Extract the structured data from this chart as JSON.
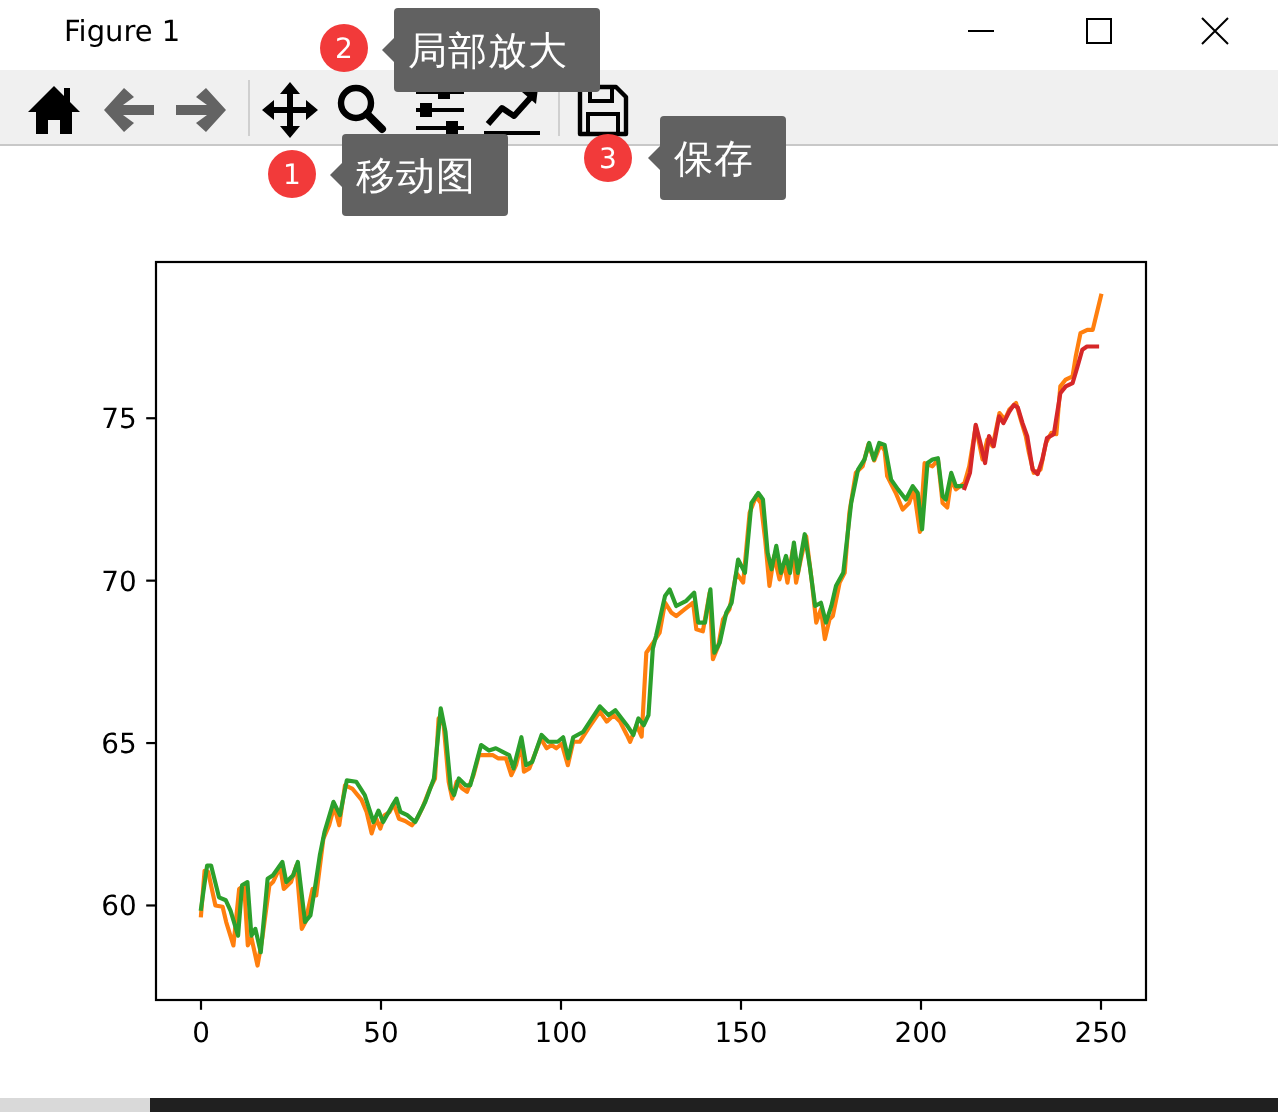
{
  "chart_data": {
    "type": "line",
    "annotations": [
      "Figure 1",
      "1",
      "移动图",
      "2",
      "局部放大",
      "3",
      "保存"
    ],
    "xlim": [
      -12.5,
      262.5
    ],
    "xticks": [
      0,
      50,
      100,
      150,
      200,
      250
    ],
    "ylim": [
      57.09,
      79.81
    ],
    "yticks": [
      60,
      65,
      70,
      75
    ],
    "series": [
      {
        "color": "#ff7f0e",
        "x": [
          0,
          1,
          2,
          4,
          6,
          7,
          9,
          10.6,
          12,
          13,
          14,
          15.7,
          17,
          19,
          20,
          22,
          23,
          25,
          26.5,
          28,
          29,
          31,
          32,
          34,
          35.6,
          37,
          38.4,
          40,
          42,
          44.6,
          46,
          47.4,
          48.7,
          49.8,
          51,
          52.4,
          53.5,
          55,
          56.7,
          58.6,
          60,
          61.4,
          63.6,
          65,
          66,
          67.4,
          68.8,
          69.8,
          71,
          72.6,
          73.9,
          75.7,
          77.2,
          81,
          82.5,
          84.7,
          86.2,
          87.5,
          89,
          89.7,
          91.2,
          93,
          94.4,
          96,
          97.4,
          98.7,
          100.2,
          101.9,
          103.4,
          105.2,
          107.6,
          110.8,
          112.7,
          114.6,
          116.4,
          118.3,
          119.2,
          121,
          122.4,
          123.7,
          125.6,
          127.4,
          128.9,
          130.7,
          132,
          134.4,
          136.7,
          137.6,
          139.4,
          141.3,
          142.2,
          143.7,
          145,
          146.8,
          148.7,
          150.6,
          152.4,
          154.2,
          155.5,
          156.7,
          157.9,
          159.2,
          160.7,
          162,
          162.9,
          164.4,
          165.3,
          166.6,
          168.1,
          169.6,
          170.9,
          172.2,
          173.3,
          174.6,
          175.5,
          177.4,
          178.8,
          180.1,
          181.9,
          183.8,
          185.4,
          187,
          188.8,
          189.9,
          190.6,
          193,
          194.9,
          196.7,
          198,
          199.7,
          201,
          203.2,
          204.7,
          206,
          207.3,
          208.4,
          209.7,
          212.1,
          213.4,
          215.2,
          217.1,
          218.4,
          219.9,
          221.8,
          223.3,
          224.5,
          226.4,
          227.7,
          229.1,
          230,
          231.3,
          233.2,
          234.7,
          236.2,
          237.6,
          238.7,
          240.2,
          242.1,
          243,
          244.3,
          246.2,
          247.7,
          248.6,
          250
        ],
        "values": [
          59.7,
          61.07,
          61.03,
          60.0,
          59.96,
          59.49,
          58.77,
          60.51,
          60.62,
          58.77,
          59.01,
          58.15,
          58.97,
          60.62,
          60.72,
          61.19,
          60.51,
          60.72,
          61.23,
          59.28,
          59.49,
          60.51,
          60.31,
          62.06,
          62.47,
          63.05,
          62.47,
          63.7,
          63.6,
          63.25,
          62.88,
          62.22,
          62.67,
          62.37,
          62.78,
          62.88,
          63.13,
          62.67,
          62.6,
          62.47,
          62.67,
          62.98,
          63.6,
          63.91,
          65.76,
          65.56,
          63.81,
          63.29,
          63.81,
          63.6,
          63.5,
          64.01,
          64.63,
          64.63,
          64.53,
          64.53,
          64.01,
          64.32,
          64.98,
          64.12,
          64.22,
          64.73,
          65.14,
          64.84,
          64.94,
          64.84,
          64.98,
          64.32,
          65.04,
          65.04,
          65.45,
          65.97,
          65.66,
          65.86,
          65.66,
          65.25,
          65.04,
          65.55,
          65.2,
          67.78,
          68.09,
          68.4,
          69.32,
          69.01,
          68.91,
          69.12,
          69.32,
          68.5,
          68.44,
          69.63,
          67.58,
          67.99,
          68.81,
          69.12,
          70.24,
          69.94,
          72.09,
          72.6,
          72.39,
          71.27,
          69.84,
          70.76,
          70.04,
          70.55,
          69.94,
          70.96,
          69.94,
          70.65,
          71.37,
          70.04,
          68.71,
          69.12,
          68.2,
          68.81,
          68.91,
          69.94,
          70.24,
          72.09,
          73.32,
          73.52,
          74.2,
          73.7,
          74.2,
          74.0,
          73.22,
          72.7,
          72.19,
          72.39,
          72.81,
          71.5,
          73.62,
          73.52,
          73.73,
          72.39,
          72.25,
          73.11,
          72.81,
          73.01,
          73.52,
          74.75,
          73.73,
          74.34,
          74.14,
          75.16,
          74.96,
          75.26,
          75.47,
          74.96,
          74.45,
          73.93,
          73.32,
          73.42,
          74.24,
          74.55,
          74.51,
          75.98,
          76.19,
          76.29,
          76.91,
          77.62,
          77.72,
          77.72,
          78.13,
          78.77
        ]
      },
      {
        "color": "#2ca02c",
        "x": [
          0,
          1.7,
          2.8,
          5,
          6.9,
          8.2,
          10.3,
          11.4,
          12.9,
          14,
          15.1,
          16.6,
          18.5,
          20,
          22.6,
          23.7,
          25.6,
          26.9,
          28.9,
          30.4,
          31.9,
          33,
          34.3,
          36.8,
          38.6,
          40.5,
          43.1,
          45.5,
          47.9,
          49.3,
          50.6,
          53,
          54.3,
          55.4,
          57.3,
          59.5,
          62.3,
          64.7,
          66.6,
          67.9,
          69.4,
          70.3,
          71.6,
          73.5,
          74.8,
          77.8,
          80,
          81.9,
          83.8,
          85.6,
          86.8,
          89,
          90.3,
          92,
          94.6,
          96.5,
          99.1,
          100.6,
          102,
          103.4,
          106.2,
          110.8,
          113.2,
          115.1,
          118.3,
          120.1,
          121.5,
          123,
          124.3,
          125.5,
          126.4,
          128.9,
          130.2,
          132,
          134.8,
          137,
          138.1,
          140,
          141.5,
          142.6,
          144.1,
          145.9,
          147.4,
          149.2,
          151.1,
          152.9,
          154.8,
          156.1,
          157.4,
          158.5,
          159.8,
          161.1,
          162.5,
          163.6,
          164.7,
          165.8,
          167.7,
          169.1,
          170.6,
          172.2,
          173.6,
          175.1,
          176.4,
          178.4,
          180.6,
          182.5,
          184.3,
          185.6,
          186.9,
          188.4,
          189.9,
          191.7,
          193.6,
          195.8,
          197.7,
          199.1,
          200.3,
          201.8,
          203.2,
          204.7,
          206,
          206.9,
          208.4,
          209.7,
          211.5
        ],
        "values": [
          59.9,
          61.23,
          61.23,
          60.25,
          60.16,
          59.84,
          59.07,
          60.62,
          60.72,
          59.07,
          59.28,
          58.56,
          60.82,
          60.93,
          61.34,
          60.72,
          60.93,
          61.34,
          59.49,
          59.69,
          60.72,
          61.54,
          62.26,
          63.19,
          62.78,
          63.85,
          63.81,
          63.4,
          62.57,
          62.92,
          62.57,
          63.05,
          63.29,
          62.88,
          62.78,
          62.57,
          63.19,
          63.91,
          66.07,
          65.35,
          63.6,
          63.4,
          63.91,
          63.7,
          63.7,
          64.94,
          64.77,
          64.84,
          64.73,
          64.63,
          64.22,
          65.18,
          64.32,
          64.42,
          65.25,
          65.04,
          65.04,
          65.18,
          64.53,
          65.18,
          65.35,
          66.13,
          65.86,
          66.01,
          65.55,
          65.25,
          65.76,
          65.55,
          65.86,
          67.9,
          68.3,
          69.53,
          69.73,
          69.22,
          69.38,
          69.63,
          68.71,
          68.71,
          69.73,
          67.78,
          68.09,
          69.01,
          69.32,
          70.65,
          70.24,
          72.39,
          72.7,
          72.5,
          70.86,
          70.35,
          71.07,
          70.24,
          70.76,
          70.24,
          71.17,
          70.24,
          71.43,
          70.45,
          69.22,
          69.32,
          68.71,
          69.22,
          69.84,
          70.24,
          72.39,
          73.42,
          73.73,
          74.24,
          73.73,
          74.24,
          74.18,
          73.11,
          72.81,
          72.5,
          72.91,
          72.7,
          71.58,
          73.62,
          73.73,
          73.77,
          72.6,
          72.5,
          73.32,
          72.91,
          72.91
        ]
      },
      {
        "color": "#d62728",
        "x": [
          212.1,
          213.6,
          215.2,
          216.5,
          217.8,
          218.9,
          220.2,
          221.7,
          222.9,
          224.5,
          225.8,
          226.9,
          228.2,
          229.5,
          231,
          232.4,
          233.7,
          235,
          236.9,
          238.7,
          240.2,
          242.1,
          243.5,
          244.8,
          246.1,
          248.9
        ],
        "values": [
          72.85,
          73.32,
          74.8,
          74.24,
          73.62,
          74.45,
          74.14,
          75.06,
          74.85,
          75.2,
          75.41,
          75.33,
          74.85,
          74.45,
          73.42,
          73.28,
          73.73,
          74.39,
          74.51,
          75.77,
          75.98,
          76.08,
          76.6,
          77.11,
          77.21,
          77.21
        ]
      }
    ]
  }
}
